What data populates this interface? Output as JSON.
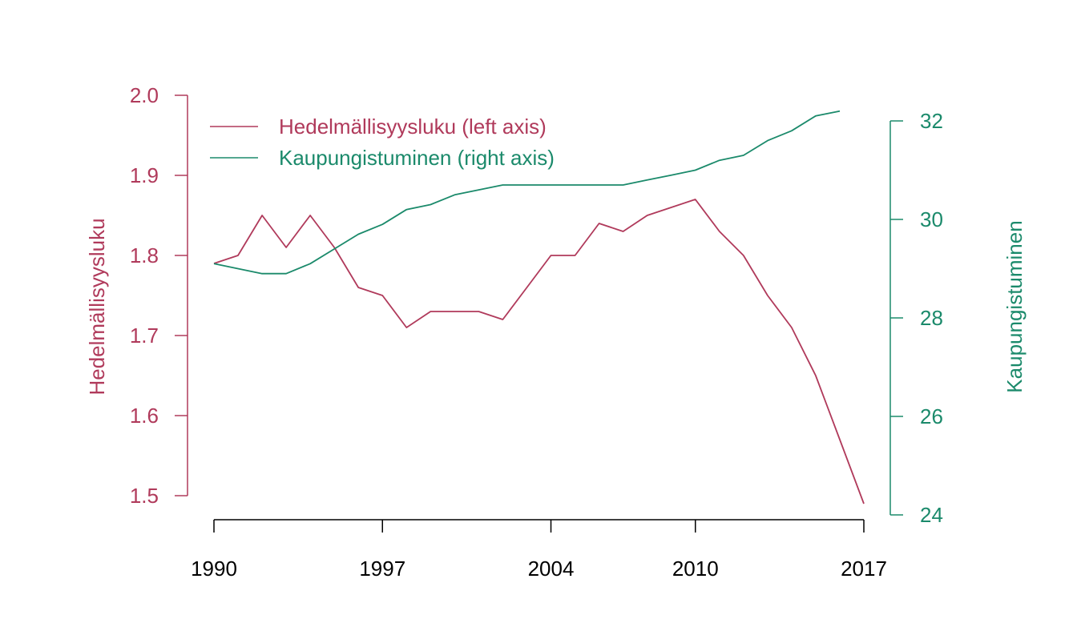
{
  "chart_data": {
    "type": "line",
    "x": [
      1990,
      1991,
      1992,
      1993,
      1994,
      1995,
      1996,
      1997,
      1998,
      1999,
      2000,
      2001,
      2002,
      2003,
      2004,
      2005,
      2006,
      2007,
      2008,
      2009,
      2010,
      2011,
      2012,
      2013,
      2014,
      2015,
      2016,
      2017
    ],
    "xlim": [
      1990,
      2017
    ],
    "xticks": [
      "1990",
      "1997",
      "2004",
      "2010",
      "2017"
    ],
    "series": [
      {
        "name": "Hedelmällisyysluku",
        "axis": "left",
        "color": "#b03a5b",
        "x": [
          1990,
          1991,
          1992,
          1993,
          1994,
          1995,
          1996,
          1997,
          1998,
          1999,
          2000,
          2001,
          2002,
          2003,
          2004,
          2005,
          2006,
          2007,
          2008,
          2009,
          2010,
          2011,
          2012,
          2013,
          2014,
          2015,
          2016,
          2017
        ],
        "values": [
          1.79,
          1.8,
          1.85,
          1.81,
          1.85,
          1.81,
          1.76,
          1.75,
          1.71,
          1.73,
          1.73,
          1.73,
          1.72,
          1.76,
          1.8,
          1.8,
          1.84,
          1.83,
          1.85,
          1.86,
          1.87,
          1.83,
          1.8,
          1.75,
          1.71,
          1.65,
          1.57,
          1.49
        ]
      },
      {
        "name": "Kaupungistuminen",
        "axis": "right",
        "color": "#1b8a6b",
        "x": [
          1990,
          1991,
          1992,
          1993,
          1994,
          1995,
          1996,
          1997,
          1998,
          1999,
          2000,
          2001,
          2002,
          2003,
          2004,
          2005,
          2006,
          2007,
          2008,
          2009,
          2010,
          2011,
          2012,
          2013,
          2014,
          2015,
          2016
        ],
        "values": [
          29.1,
          29.0,
          28.9,
          28.9,
          29.1,
          29.4,
          29.7,
          29.9,
          30.2,
          30.3,
          30.5,
          30.6,
          30.7,
          30.7,
          30.7,
          30.7,
          30.7,
          30.7,
          30.8,
          30.9,
          31.0,
          31.2,
          31.3,
          31.6,
          31.8,
          32.1,
          32.2
        ]
      }
    ],
    "left_axis": {
      "label": "Hedelmällisyysluku",
      "ylim": [
        1.5,
        2.0
      ],
      "ticks": [
        "2.0",
        "1.9",
        "1.8",
        "1.7",
        "1.6",
        "1.5"
      ],
      "color": "#b03a5b"
    },
    "right_axis": {
      "label": "Kaupungistuminen",
      "ylim": [
        24,
        32
      ],
      "ticks": [
        "32",
        "30",
        "28",
        "26",
        "24"
      ],
      "color": "#1b8a6b"
    },
    "legend": {
      "placement": "top-left",
      "entries": [
        "Hedelmällisyysluku (left axis)",
        "Kaupungistuminen (right axis)"
      ]
    },
    "grid": false
  }
}
